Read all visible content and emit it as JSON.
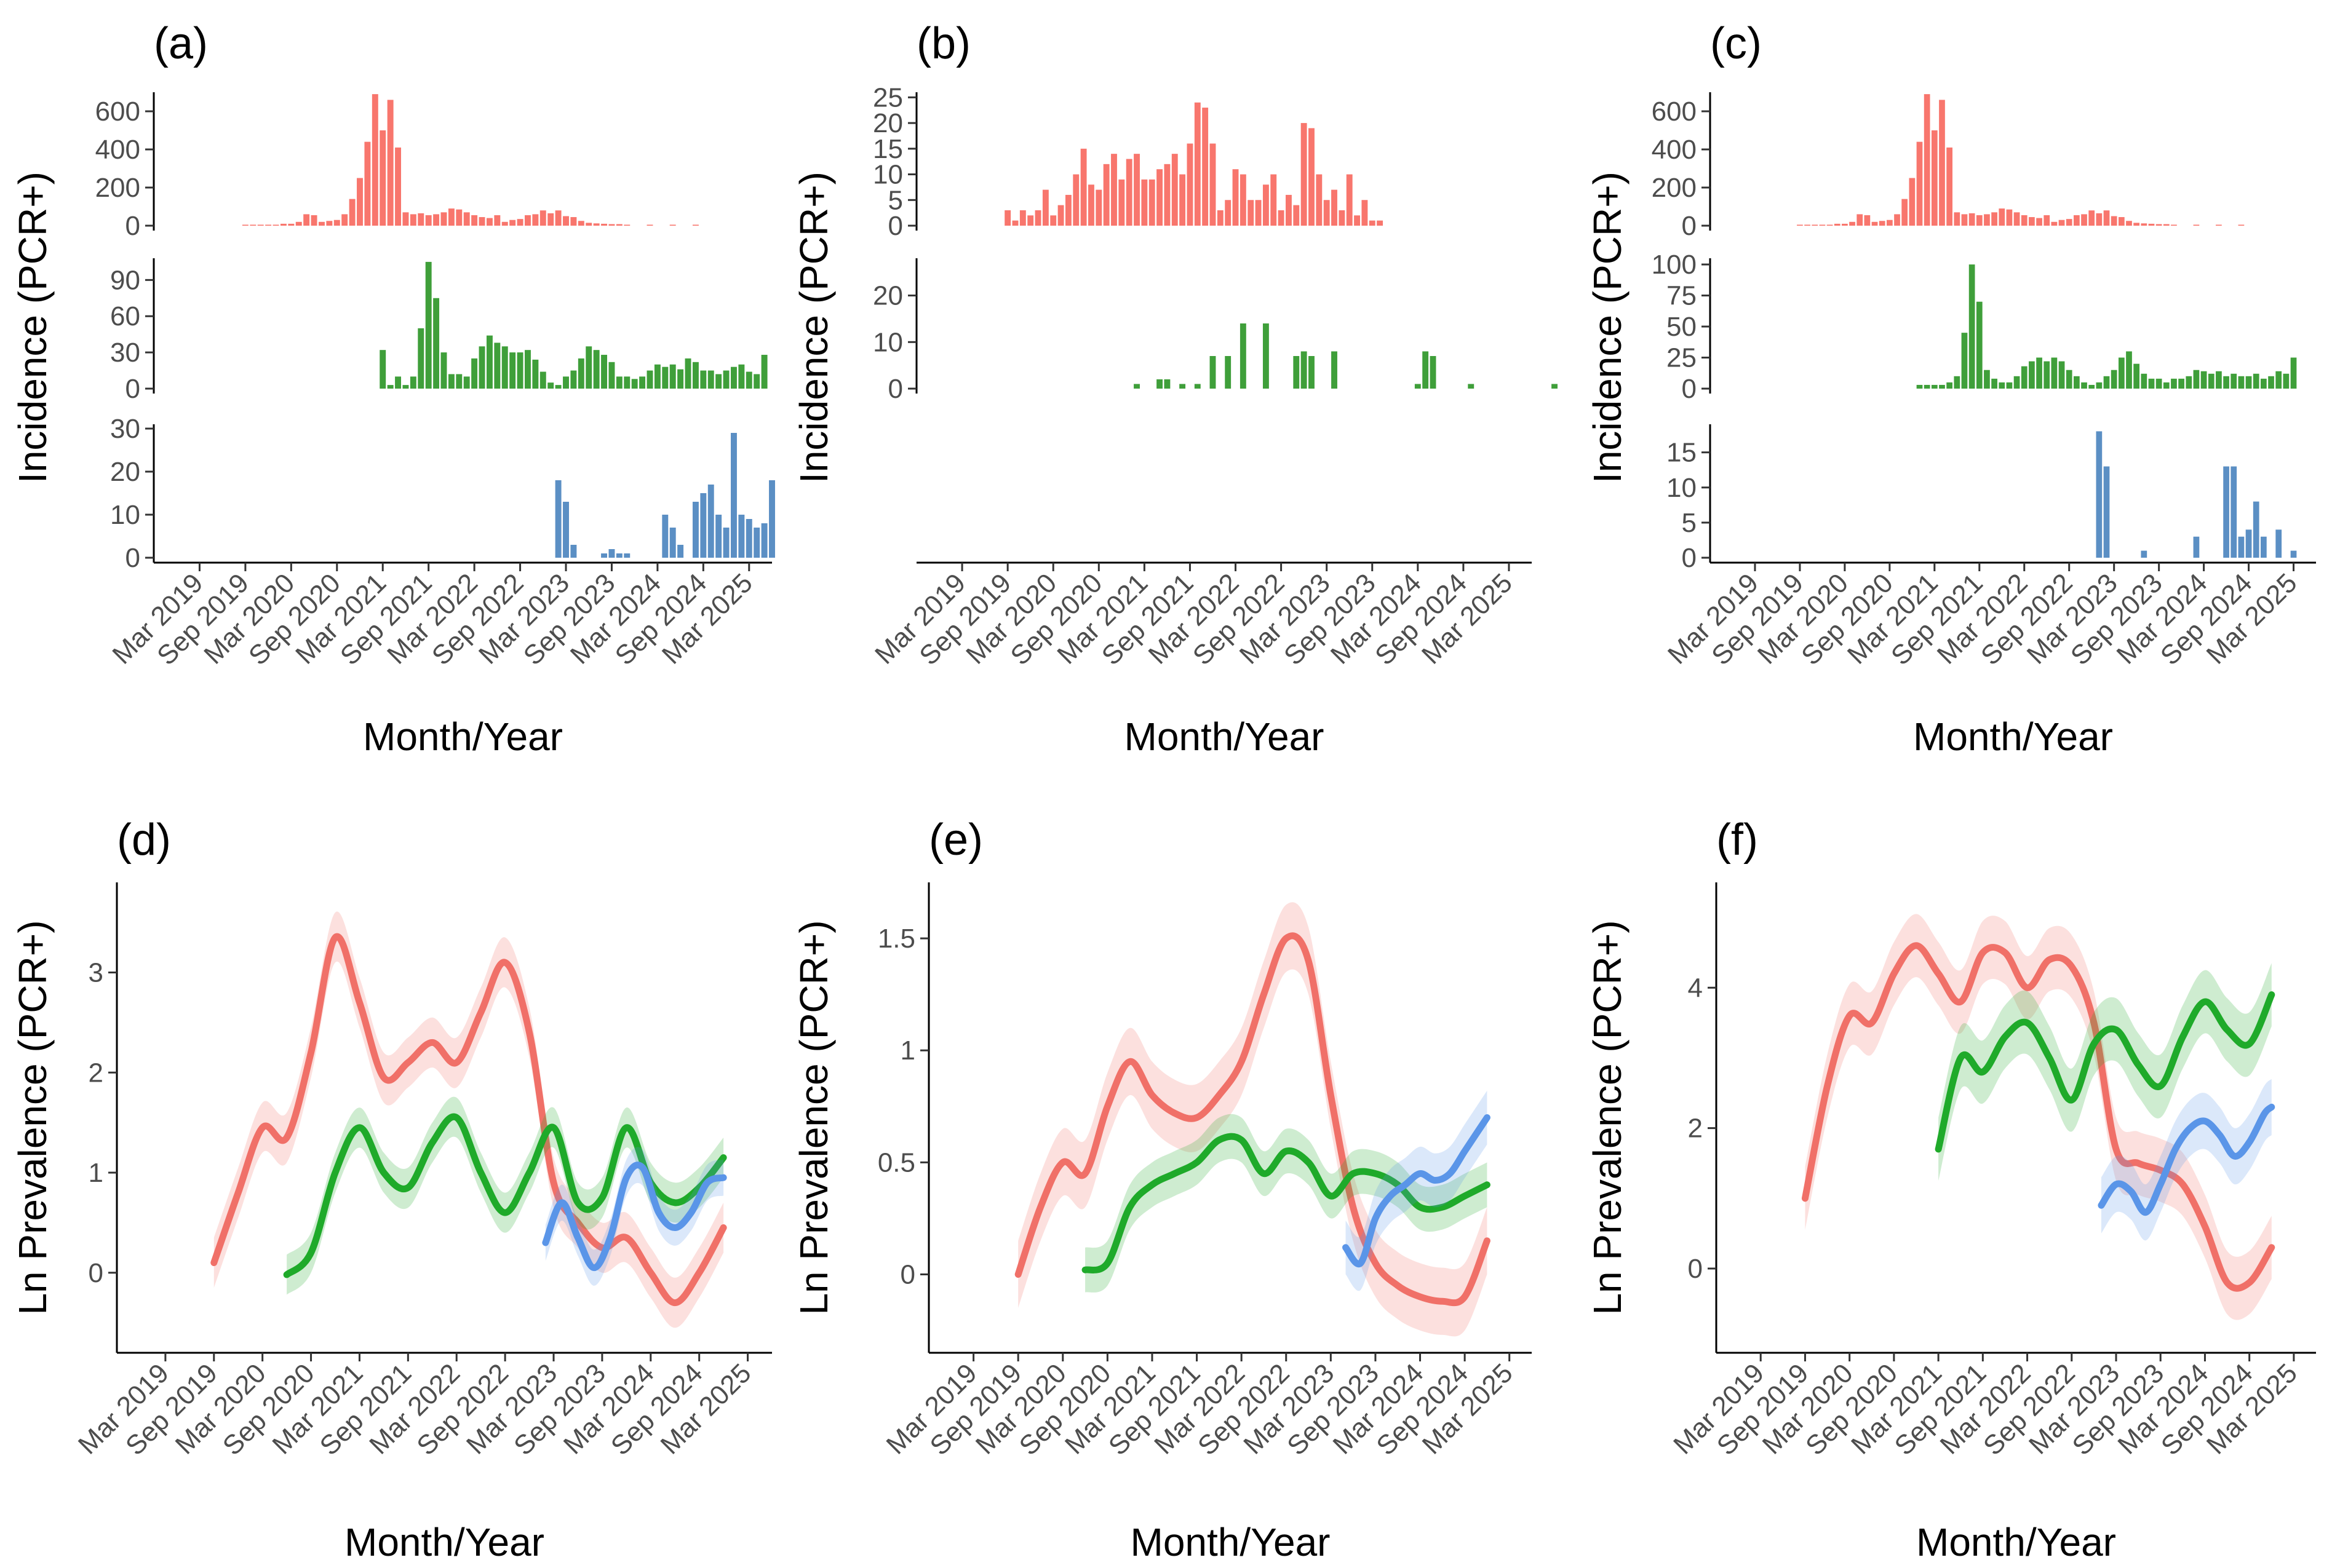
{
  "figure": {
    "months": [
      "Mar 2019",
      "Sep 2019",
      "Mar 2020",
      "Sep 2020",
      "Mar 2021",
      "Sep 2021",
      "Mar 2022",
      "Sep 2022",
      "Mar 2023",
      "Sep 2023",
      "Mar 2024",
      "Sep 2024",
      "Mar 2025"
    ],
    "colors": {
      "red": "#f8766d",
      "green": "#3f9f3a",
      "blue": "#5b8fc4",
      "red_line": "#f07068",
      "green_line": "#1faa2a",
      "blue_line": "#5a95e8"
    }
  },
  "chart_data": [
    {
      "panel": "(a)",
      "type": "bar",
      "ylabel": "Incidence (PCR+)",
      "xlabel": "Month/Year",
      "x_ticks": [
        "Mar 2019",
        "Sep 2019",
        "Mar 2020",
        "Sep 2020",
        "Mar 2021",
        "Sep 2021",
        "Mar 2022",
        "Sep 2022",
        "Mar 2023",
        "Sep 2023",
        "Mar 2024",
        "Sep 2024",
        "Mar 2025"
      ],
      "series": [
        {
          "name": "red",
          "ylim": [
            0,
            700
          ],
          "yticks": [
            0,
            200,
            400,
            600
          ],
          "start_month": "Sep 2019",
          "values": [
            5,
            5,
            5,
            5,
            5,
            10,
            10,
            20,
            60,
            55,
            20,
            25,
            30,
            60,
            140,
            250,
            440,
            690,
            500,
            660,
            410,
            70,
            60,
            65,
            55,
            60,
            70,
            90,
            85,
            70,
            55,
            45,
            40,
            55,
            20,
            30,
            35,
            55,
            60,
            80,
            65,
            80,
            50,
            45,
            25,
            15,
            12,
            10,
            8,
            8,
            5,
            0,
            0,
            5,
            0,
            0,
            5,
            0,
            0,
            5,
            0,
            0,
            0,
            0,
            0,
            0,
            0
          ]
        },
        {
          "name": "green",
          "ylim": [
            0,
            108
          ],
          "yticks": [
            0,
            30,
            60,
            90
          ],
          "start_month": "Mar 2021",
          "values": [
            32,
            3,
            10,
            3,
            10,
            50,
            105,
            75,
            30,
            12,
            12,
            10,
            25,
            35,
            44,
            38,
            35,
            30,
            30,
            32,
            24,
            14,
            5,
            3,
            10,
            15,
            25,
            35,
            32,
            28,
            22,
            10,
            10,
            8,
            10,
            15,
            20,
            18,
            20,
            16,
            25,
            22,
            15,
            15,
            12,
            15,
            18,
            20,
            14,
            12,
            28
          ]
        },
        {
          "name": "blue",
          "ylim": [
            0,
            31
          ],
          "yticks": [
            0,
            10,
            20,
            30
          ],
          "start_month": "Feb 2023",
          "values": [
            18,
            13,
            3,
            0,
            0,
            0,
            1,
            2,
            1,
            1,
            0,
            0,
            0,
            0,
            10,
            7,
            3,
            0,
            13,
            15,
            17,
            10,
            7,
            29,
            10,
            9,
            7,
            8,
            18
          ]
        }
      ]
    },
    {
      "panel": "(b)",
      "type": "bar",
      "ylabel": "Incidence (PCR+)",
      "xlabel": "Month/Year",
      "x_ticks": [
        "Mar 2019",
        "Sep 2019",
        "Mar 2020",
        "Sep 2020",
        "Mar 2021",
        "Sep 2021",
        "Mar 2022",
        "Sep 2022",
        "Mar 2023",
        "Sep 2023",
        "Mar 2024",
        "Sep 2024",
        "Mar 2025"
      ],
      "series": [
        {
          "name": "red",
          "ylim": [
            0,
            26
          ],
          "yticks": [
            0,
            5,
            10,
            15,
            20,
            25
          ],
          "start_month": "Sep 2019",
          "values": [
            3,
            1,
            3,
            2,
            3,
            7,
            2,
            4,
            6,
            10,
            15,
            8,
            7,
            12,
            14,
            9,
            13,
            14,
            9,
            9,
            11,
            12,
            14,
            10,
            16,
            24,
            23,
            16,
            3,
            5,
            11,
            10,
            5,
            5,
            8,
            10,
            3,
            6,
            4,
            20,
            19,
            10,
            5,
            7,
            3,
            10,
            2,
            5,
            1,
            1
          ]
        },
        {
          "name": "green",
          "ylim": [
            0,
            28
          ],
          "yticks": [
            0,
            10,
            20
          ],
          "start_month": "Dec 2020",
          "values": [
            0,
            0,
            1,
            0,
            0,
            2,
            2,
            0,
            1,
            0,
            1,
            0,
            7,
            0,
            7,
            0,
            14,
            0,
            0,
            14,
            0,
            0,
            0,
            7,
            8,
            7,
            0,
            0,
            8,
            0,
            0,
            0,
            0,
            0,
            0,
            0,
            0,
            0,
            0,
            1,
            8,
            7,
            0,
            0,
            0,
            0,
            1,
            0,
            0,
            0,
            0,
            0,
            0,
            0,
            0,
            0,
            0,
            1,
            0,
            0,
            0,
            0,
            0,
            0,
            0,
            0,
            0,
            0,
            0
          ]
        }
      ]
    },
    {
      "panel": "(c)",
      "type": "bar",
      "ylabel": "Incidence (PCR+)",
      "xlabel": "Month/Year",
      "x_ticks": [
        "Mar 2019",
        "Sep 2019",
        "Mar 2020",
        "Sep 2020",
        "Mar 2021",
        "Sep 2021",
        "Mar 2022",
        "Sep 2022",
        "Mar 2023",
        "Sep 2023",
        "Mar 2024",
        "Sep 2024",
        "Mar 2025"
      ],
      "series": [
        {
          "name": "red",
          "ylim": [
            0,
            700
          ],
          "yticks": [
            0,
            200,
            400,
            600
          ],
          "start_month": "Sep 2019",
          "values": [
            5,
            5,
            5,
            5,
            5,
            10,
            10,
            20,
            60,
            55,
            20,
            25,
            30,
            60,
            140,
            250,
            440,
            690,
            500,
            660,
            410,
            70,
            60,
            65,
            55,
            60,
            70,
            90,
            85,
            70,
            55,
            45,
            40,
            55,
            20,
            30,
            35,
            55,
            60,
            80,
            65,
            80,
            50,
            45,
            25,
            15,
            12,
            10,
            8,
            8,
            5,
            0,
            0,
            5,
            0,
            0,
            5,
            0,
            0,
            5,
            0,
            0,
            0,
            0,
            0,
            0,
            0
          ]
        },
        {
          "name": "green",
          "ylim": [
            0,
            105
          ],
          "yticks": [
            0,
            25,
            50,
            75,
            100
          ],
          "start_month": "Jan 2021",
          "values": [
            3,
            3,
            3,
            3,
            5,
            10,
            45,
            100,
            70,
            15,
            8,
            5,
            5,
            10,
            18,
            22,
            25,
            22,
            25,
            22,
            15,
            10,
            5,
            3,
            5,
            10,
            15,
            25,
            30,
            20,
            12,
            8,
            8,
            5,
            8,
            8,
            10,
            15,
            14,
            12,
            14,
            10,
            12,
            10,
            10,
            12,
            8,
            10,
            14,
            12,
            25
          ]
        },
        {
          "name": "blue",
          "ylim": [
            0,
            19
          ],
          "yticks": [
            0,
            5,
            10,
            15
          ],
          "start_month": "Jan 2023",
          "values": [
            18,
            13,
            0,
            0,
            0,
            0,
            1,
            0,
            0,
            0,
            0,
            0,
            0,
            3,
            0,
            0,
            0,
            13,
            13,
            3,
            4,
            8,
            3,
            0,
            4,
            0,
            1
          ]
        }
      ]
    },
    {
      "panel": "(d)",
      "type": "line",
      "ylabel": "Ln Prevalence (PCR+)",
      "xlabel": "Month/Year",
      "ylim": [
        -0.8,
        3.9
      ],
      "yticks": [
        0,
        1,
        2,
        3
      ],
      "x_ticks": [
        "Mar 2019",
        "Sep 2019",
        "Mar 2020",
        "Sep 2020",
        "Mar 2021",
        "Sep 2021",
        "Mar 2022",
        "Sep 2022",
        "Mar 2023",
        "Sep 2023",
        "Mar 2024",
        "Sep 2024",
        "Mar 2025"
      ],
      "series": [
        {
          "name": "red",
          "x": [
            6,
            9,
            12,
            15,
            18,
            21,
            24,
            27,
            30,
            33,
            36,
            39,
            42,
            45,
            48,
            51,
            54,
            57,
            60,
            63,
            66,
            69
          ],
          "y": [
            0.1,
            0.8,
            1.45,
            1.35,
            2.2,
            3.35,
            2.7,
            1.95,
            2.1,
            2.3,
            2.1,
            2.6,
            3.1,
            2.4,
            0.9,
            0.5,
            0.25,
            0.35,
            0.0,
            -0.3,
            0.0,
            0.45
          ],
          "ci": 0.25
        },
        {
          "name": "green",
          "x": [
            15,
            18,
            21,
            24,
            27,
            30,
            33,
            36,
            39,
            42,
            45,
            48,
            51,
            54,
            57,
            60,
            63,
            66,
            69
          ],
          "y": [
            -0.02,
            0.2,
            1.0,
            1.45,
            1.0,
            0.85,
            1.3,
            1.55,
            1.0,
            0.6,
            1.0,
            1.45,
            0.7,
            0.75,
            1.45,
            0.9,
            0.7,
            0.85,
            1.15
          ],
          "ci": 0.2
        },
        {
          "name": "blue",
          "x": [
            47,
            49,
            51,
            53,
            55,
            57,
            59,
            61,
            63,
            65,
            67,
            69
          ],
          "y": [
            0.3,
            0.7,
            0.35,
            0.05,
            0.35,
            0.95,
            1.05,
            0.6,
            0.45,
            0.6,
            0.9,
            0.95
          ],
          "ci": 0.18
        }
      ]
    },
    {
      "panel": "(e)",
      "type": "line",
      "ylabel": "Ln Prevalence (PCR+)",
      "xlabel": "Month/Year",
      "ylim": [
        -0.35,
        1.75
      ],
      "yticks": [
        0.0,
        0.5,
        1.0,
        1.5
      ],
      "x_ticks": [
        "Mar 2019",
        "Sep 2019",
        "Mar 2020",
        "Sep 2020",
        "Mar 2021",
        "Sep 2021",
        "Mar 2022",
        "Sep 2022",
        "Mar 2023",
        "Sep 2023",
        "Mar 2024",
        "Sep 2024",
        "Mar 2025"
      ],
      "series": [
        {
          "name": "red",
          "x": [
            6,
            9,
            12,
            15,
            18,
            21,
            24,
            27,
            30,
            33,
            36,
            39,
            42,
            45,
            48,
            51,
            54,
            57,
            60,
            63,
            66,
            69
          ],
          "y": [
            0.0,
            0.3,
            0.5,
            0.45,
            0.75,
            0.95,
            0.8,
            0.72,
            0.7,
            0.8,
            0.95,
            1.25,
            1.5,
            1.4,
            0.8,
            0.3,
            0.05,
            -0.05,
            -0.1,
            -0.12,
            -0.1,
            0.15
          ],
          "ci": 0.15
        },
        {
          "name": "green",
          "x": [
            15,
            18,
            21,
            24,
            27,
            30,
            33,
            36,
            39,
            42,
            45,
            48,
            51,
            54,
            57,
            60,
            63,
            66,
            69
          ],
          "y": [
            0.02,
            0.05,
            0.3,
            0.4,
            0.45,
            0.5,
            0.6,
            0.6,
            0.45,
            0.55,
            0.5,
            0.35,
            0.45,
            0.45,
            0.4,
            0.3,
            0.3,
            0.35,
            0.4
          ],
          "ci": 0.1
        },
        {
          "name": "blue",
          "x": [
            50,
            52,
            54,
            56,
            58,
            60,
            62,
            64,
            66,
            68,
            69
          ],
          "y": [
            0.12,
            0.05,
            0.25,
            0.35,
            0.4,
            0.45,
            0.42,
            0.45,
            0.55,
            0.65,
            0.7
          ],
          "ci": 0.12
        }
      ]
    },
    {
      "panel": "(f)",
      "type": "line",
      "ylabel": "Ln Prevalence (PCR+)",
      "xlabel": "Month/Year",
      "ylim": [
        -1.2,
        5.5
      ],
      "yticks": [
        0,
        2,
        4
      ],
      "x_ticks": [
        "Mar 2019",
        "Sep 2019",
        "Mar 2020",
        "Sep 2020",
        "Mar 2021",
        "Sep 2021",
        "Mar 2022",
        "Sep 2022",
        "Mar 2023",
        "Sep 2023",
        "Mar 2024",
        "Sep 2024",
        "Mar 2025"
      ],
      "series": [
        {
          "name": "red",
          "x": [
            6,
            9,
            12,
            15,
            18,
            21,
            24,
            27,
            30,
            33,
            36,
            39,
            42,
            45,
            48,
            51,
            54,
            57,
            60,
            63,
            66,
            69
          ],
          "y": [
            1.0,
            2.6,
            3.6,
            3.5,
            4.2,
            4.6,
            4.2,
            3.8,
            4.5,
            4.5,
            4.0,
            4.4,
            4.3,
            3.5,
            1.7,
            1.5,
            1.4,
            1.2,
            0.6,
            -0.2,
            -0.2,
            0.3
          ],
          "ci": 0.45
        },
        {
          "name": "green",
          "x": [
            24,
            27,
            30,
            33,
            36,
            39,
            42,
            45,
            48,
            51,
            54,
            57,
            60,
            63,
            66,
            69
          ],
          "y": [
            1.7,
            3.0,
            2.8,
            3.3,
            3.5,
            3.0,
            2.4,
            3.2,
            3.4,
            2.9,
            2.6,
            3.3,
            3.8,
            3.4,
            3.2,
            3.9
          ],
          "ci": 0.45
        },
        {
          "name": "blue",
          "x": [
            46,
            48,
            50,
            52,
            54,
            56,
            58,
            60,
            62,
            64,
            66,
            68,
            69
          ],
          "y": [
            0.9,
            1.2,
            1.1,
            0.8,
            1.2,
            1.7,
            2.0,
            2.1,
            1.9,
            1.6,
            1.8,
            2.2,
            2.3
          ],
          "ci": 0.4
        }
      ]
    }
  ]
}
